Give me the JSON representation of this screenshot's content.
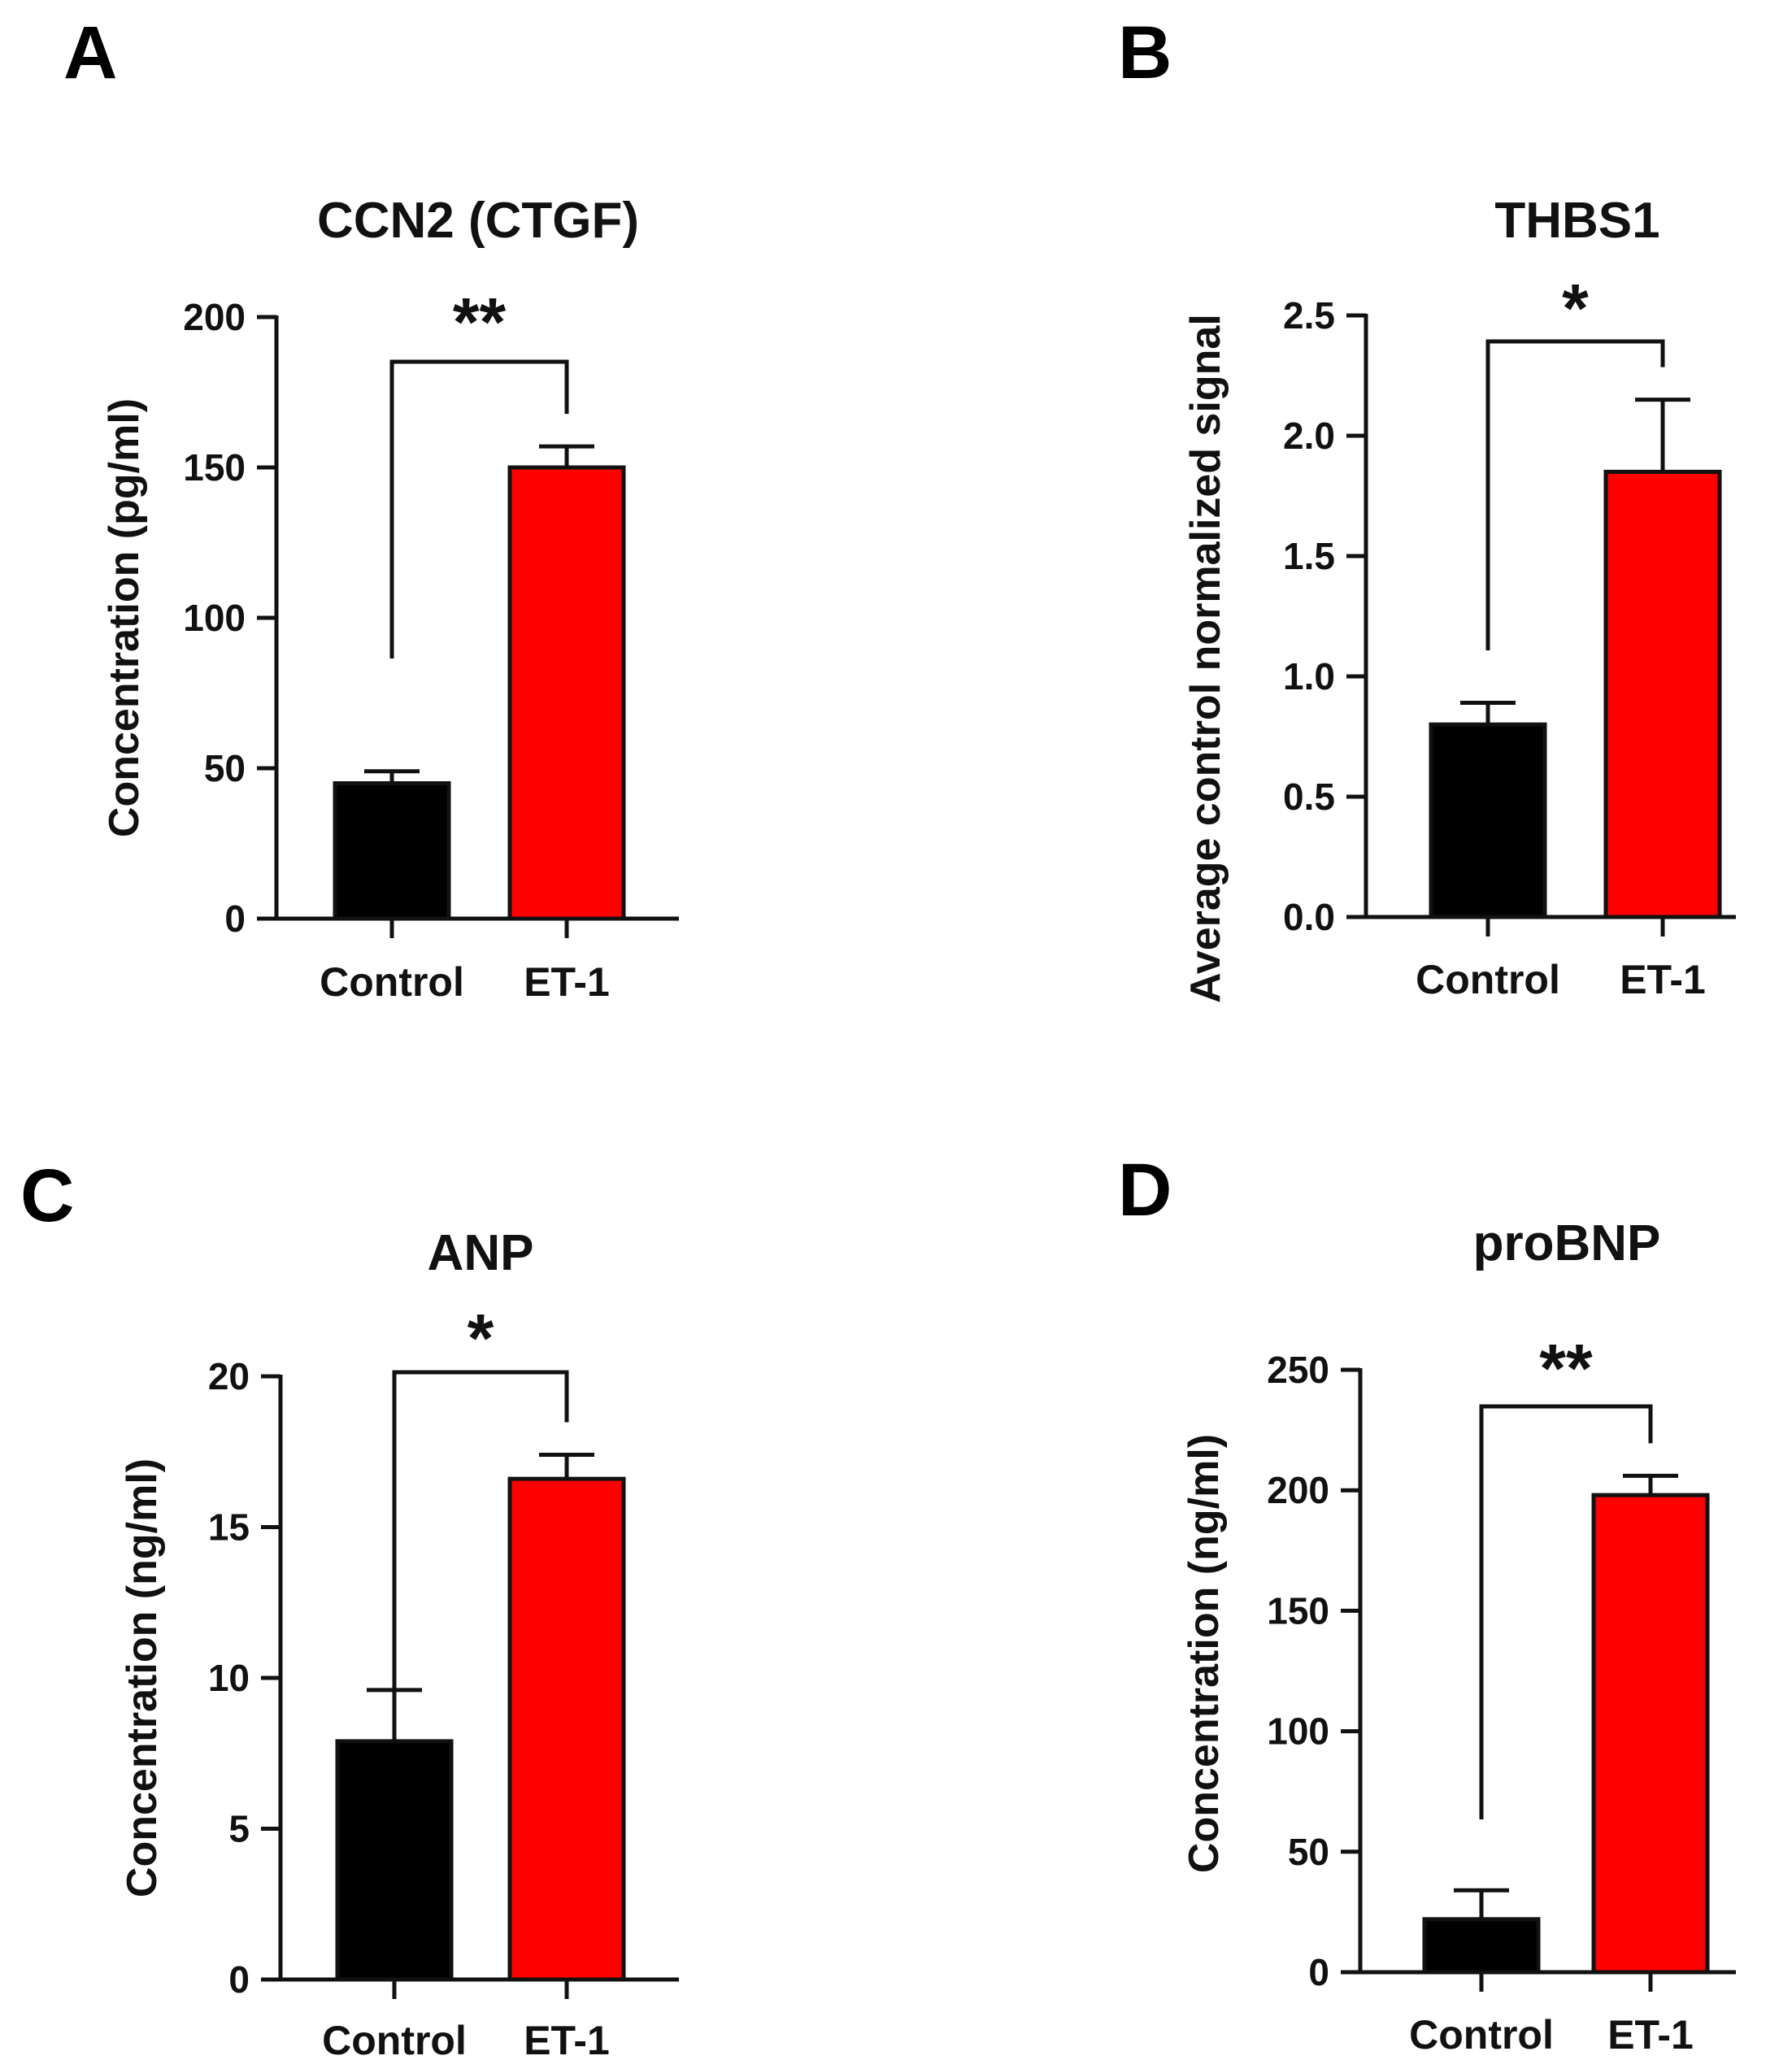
{
  "chart_data": [
    {
      "panel": "A",
      "type": "bar",
      "title": "CCN2 (CTGF)",
      "ylabel": "Concentration (pg/ml)",
      "categories": [
        "Control",
        "ET-1"
      ],
      "values": [
        45,
        150
      ],
      "errors": [
        4,
        7
      ],
      "colors": [
        "#000000",
        "#ff0000"
      ],
      "ylim": [
        0,
        200
      ],
      "yticks": [
        0,
        50,
        100,
        150,
        200
      ],
      "ytick_labels": [
        "0",
        "50",
        "100",
        "150",
        "200"
      ],
      "significance": "**"
    },
    {
      "panel": "B",
      "type": "bar",
      "title": "THBS1",
      "ylabel": "Average control normalized signal",
      "categories": [
        "Control",
        "ET-1"
      ],
      "values": [
        0.8,
        1.85
      ],
      "errors": [
        0.09,
        0.3
      ],
      "colors": [
        "#000000",
        "#ff0000"
      ],
      "ylim": [
        0,
        2.5
      ],
      "yticks": [
        0,
        0.5,
        1.0,
        1.5,
        2.0,
        2.5
      ],
      "ytick_labels": [
        "0.0",
        "0.5",
        "1.0",
        "1.5",
        "2.0",
        "2.5"
      ],
      "significance": "*"
    },
    {
      "panel": "C",
      "type": "bar",
      "title": "ANP",
      "ylabel": "Concentration (ng/ml)",
      "categories": [
        "Control",
        "ET-1"
      ],
      "values": [
        7.9,
        16.6
      ],
      "errors": [
        1.7,
        0.8
      ],
      "colors": [
        "#000000",
        "#ff0000"
      ],
      "ylim": [
        0,
        20
      ],
      "yticks": [
        0,
        5,
        10,
        15,
        20
      ],
      "ytick_labels": [
        "0",
        "5",
        "10",
        "15",
        "20"
      ],
      "significance": "*"
    },
    {
      "panel": "D",
      "type": "bar",
      "title": "proBNP",
      "ylabel": "Concentration (ng/ml)",
      "categories": [
        "Control",
        "ET-1"
      ],
      "values": [
        22,
        198
      ],
      "errors": [
        12,
        8
      ],
      "colors": [
        "#000000",
        "#ff0000"
      ],
      "ylim": [
        0,
        250
      ],
      "yticks": [
        0,
        50,
        100,
        150,
        200,
        250
      ],
      "ytick_labels": [
        "0",
        "50",
        "100",
        "150",
        "200",
        "250"
      ],
      "significance": "**"
    }
  ]
}
